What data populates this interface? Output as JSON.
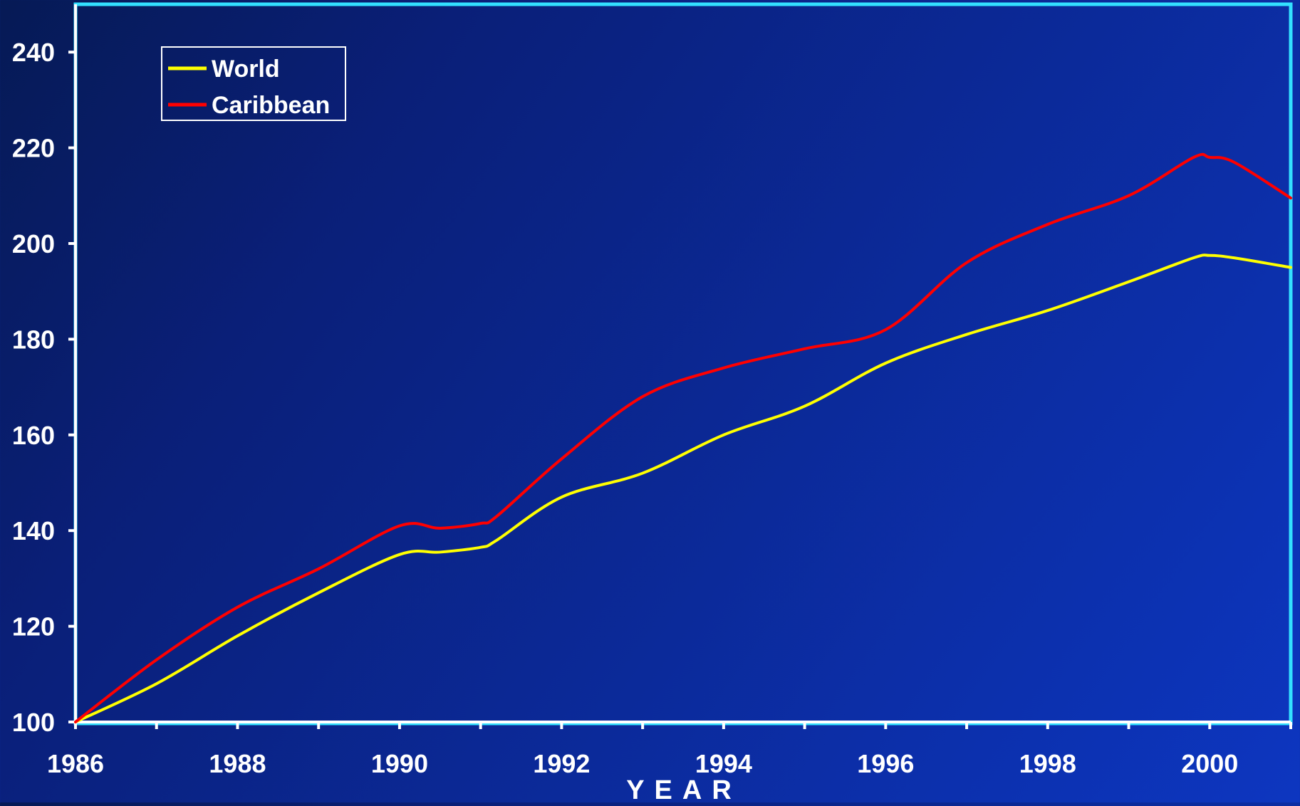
{
  "chart_data": {
    "type": "line",
    "title": "",
    "xlabel": "YEAR",
    "ylabel": "",
    "xlim": [
      1986,
      2001
    ],
    "ylim": [
      100,
      250
    ],
    "x_ticks": [
      1986,
      1988,
      1990,
      1992,
      1994,
      1996,
      1998,
      2000
    ],
    "y_ticks": [
      100,
      120,
      140,
      160,
      180,
      200,
      220,
      240
    ],
    "grid": false,
    "legend_position": "top-left",
    "x": [
      1986,
      1987,
      1988,
      1989,
      1990,
      1990.5,
      1991,
      1991.2,
      1992,
      1993,
      1994,
      1995,
      1996,
      1997,
      1998,
      1999,
      1999.8,
      2000,
      2000.3,
      2001
    ],
    "series": [
      {
        "name": "World",
        "color": "#ffff00",
        "values": [
          100,
          108,
          118,
          127,
          135,
          135.5,
          136.5,
          138,
          147,
          152,
          160,
          166,
          175,
          181,
          186,
          192,
          197,
          197.5,
          197,
          195
        ]
      },
      {
        "name": "Caribbean",
        "color": "#ff0000",
        "values": [
          100,
          113,
          124,
          132,
          141,
          140.5,
          141.5,
          143,
          155,
          168,
          174,
          178,
          182,
          196,
          204,
          210,
          218,
          218,
          217,
          209.5
        ]
      }
    ],
    "colors": {
      "axis": "#ffffff",
      "frame": "#33e0ff",
      "legend_border": "#ffffff"
    }
  }
}
